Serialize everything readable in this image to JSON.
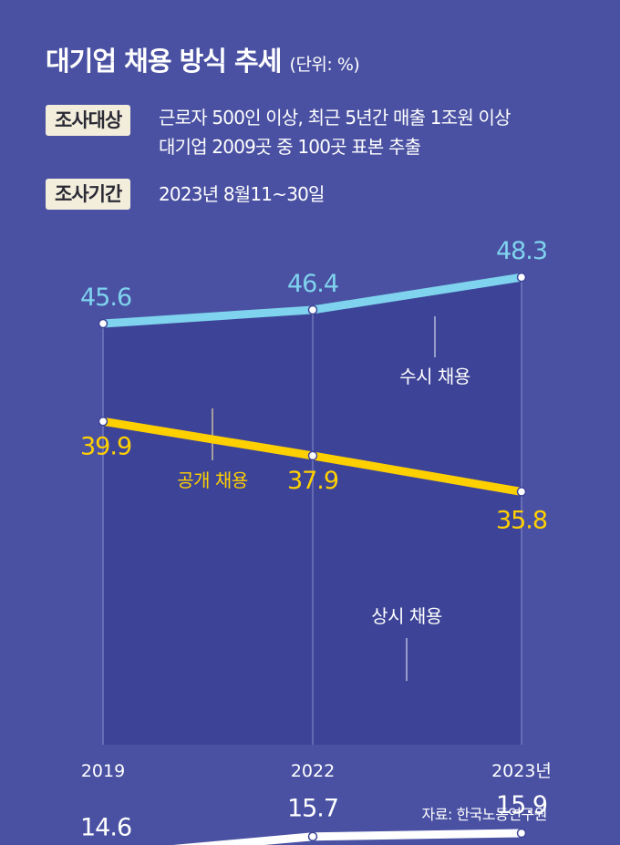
{
  "header": {
    "title": "대기업 채용 방식 추세",
    "unit": "(단위: %)"
  },
  "info": [
    {
      "label": "조사대상",
      "lines": [
        "근로자 500인 이상, 최근 5년간 매출 1조원 이상",
        "대기업 2009곳 중 100곳 표본 추출"
      ]
    },
    {
      "label": "조사기간",
      "lines": [
        "2023년 8월11~30일"
      ]
    }
  ],
  "source": "자료: 한국노동연구원",
  "chart_data": {
    "type": "line",
    "categories": [
      "2019",
      "2022",
      "2023년"
    ],
    "series": [
      {
        "name": "수시 채용",
        "values": [
          45.6,
          46.4,
          48.3
        ],
        "labels": [
          "45.6",
          "46.4",
          "48.3"
        ],
        "color": "#7FD3EE"
      },
      {
        "name": "공개 채용",
        "values": [
          39.9,
          37.9,
          35.8
        ],
        "labels": [
          "39.9",
          "37.9",
          "35.8"
        ],
        "color": "#FFD000"
      },
      {
        "name": "상시 채용",
        "values": [
          14.6,
          15.7,
          15.9
        ],
        "labels": [
          "14.6",
          "15.7",
          "15.9"
        ],
        "color": "#FFFFFF"
      }
    ],
    "colors": {
      "background": "#4A51A2",
      "plot_area": "#3D4497",
      "gridline": "#8A90CC"
    }
  }
}
